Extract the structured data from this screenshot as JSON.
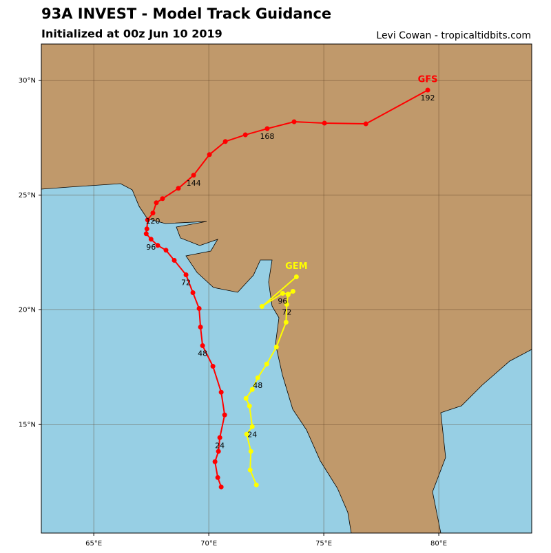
{
  "chart_data": {
    "type": "track",
    "title": "93A INVEST - Model Track Guidance",
    "subtitle": "Initialized at 00z Jun 10 2019",
    "credit": "Levi Cowan - tropicaltidbits.com",
    "xlim": [
      62.72,
      84.04
    ],
    "ylim": [
      10.27,
      31.59
    ],
    "xticks": [
      {
        "value": 65,
        "label": "65°E"
      },
      {
        "value": 70,
        "label": "70°E"
      },
      {
        "value": 75,
        "label": "75°E"
      },
      {
        "value": 80,
        "label": "80°E"
      }
    ],
    "yticks": [
      {
        "value": 15,
        "label": "15°N"
      },
      {
        "value": 20,
        "label": "20°N"
      },
      {
        "value": 25,
        "label": "25°N"
      },
      {
        "value": 30,
        "label": "30°N"
      }
    ],
    "grid": true,
    "series": [
      {
        "name": "GFS",
        "color": "#ff0000",
        "x": [
          70.54,
          70.39,
          70.27,
          70.42,
          70.48,
          70.69,
          70.54,
          70.18,
          69.73,
          69.64,
          69.58,
          69.31,
          69.01,
          68.5,
          68.14,
          67.78,
          67.49,
          67.28,
          67.31,
          67.34,
          67.57,
          67.72,
          67.99,
          68.68,
          69.34,
          70.03,
          70.72,
          71.59,
          72.54,
          73.71,
          75.03,
          76.83,
          79.52
        ],
        "values": [
          12.28,
          12.69,
          13.38,
          13.83,
          14.43,
          15.42,
          16.41,
          17.54,
          18.44,
          19.25,
          20.06,
          20.75,
          21.53,
          22.16,
          22.6,
          22.81,
          23.08,
          23.32,
          23.53,
          23.92,
          24.22,
          24.67,
          24.85,
          25.3,
          25.87,
          26.77,
          27.34,
          27.63,
          27.9,
          28.2,
          28.14,
          28.11,
          29.58
        ],
        "labels": [
          null,
          null,
          null,
          null,
          24,
          null,
          null,
          null,
          48,
          null,
          null,
          null,
          72,
          null,
          null,
          null,
          96,
          null,
          null,
          null,
          120,
          null,
          null,
          null,
          144,
          null,
          null,
          null,
          168,
          null,
          null,
          null,
          192
        ]
      },
      {
        "name": "GEM",
        "color": "#ffff00",
        "x": [
          72.07,
          71.8,
          71.83,
          71.65,
          71.89,
          71.77,
          71.62,
          71.89,
          72.13,
          72.52,
          72.94,
          73.36,
          73.39,
          73.45,
          73.66,
          73.45,
          73.21,
          72.31,
          73.81
        ],
        "values": [
          12.37,
          13.02,
          13.83,
          14.58,
          14.91,
          15.81,
          16.14,
          16.53,
          17.04,
          17.64,
          18.38,
          19.46,
          20.24,
          20.66,
          20.81,
          20.69,
          20.72,
          20.15,
          21.44
        ],
        "labels": [
          null,
          null,
          null,
          null,
          24,
          null,
          null,
          null,
          48,
          null,
          null,
          null,
          72,
          null,
          null,
          null,
          96,
          null,
          null
        ]
      }
    ]
  }
}
